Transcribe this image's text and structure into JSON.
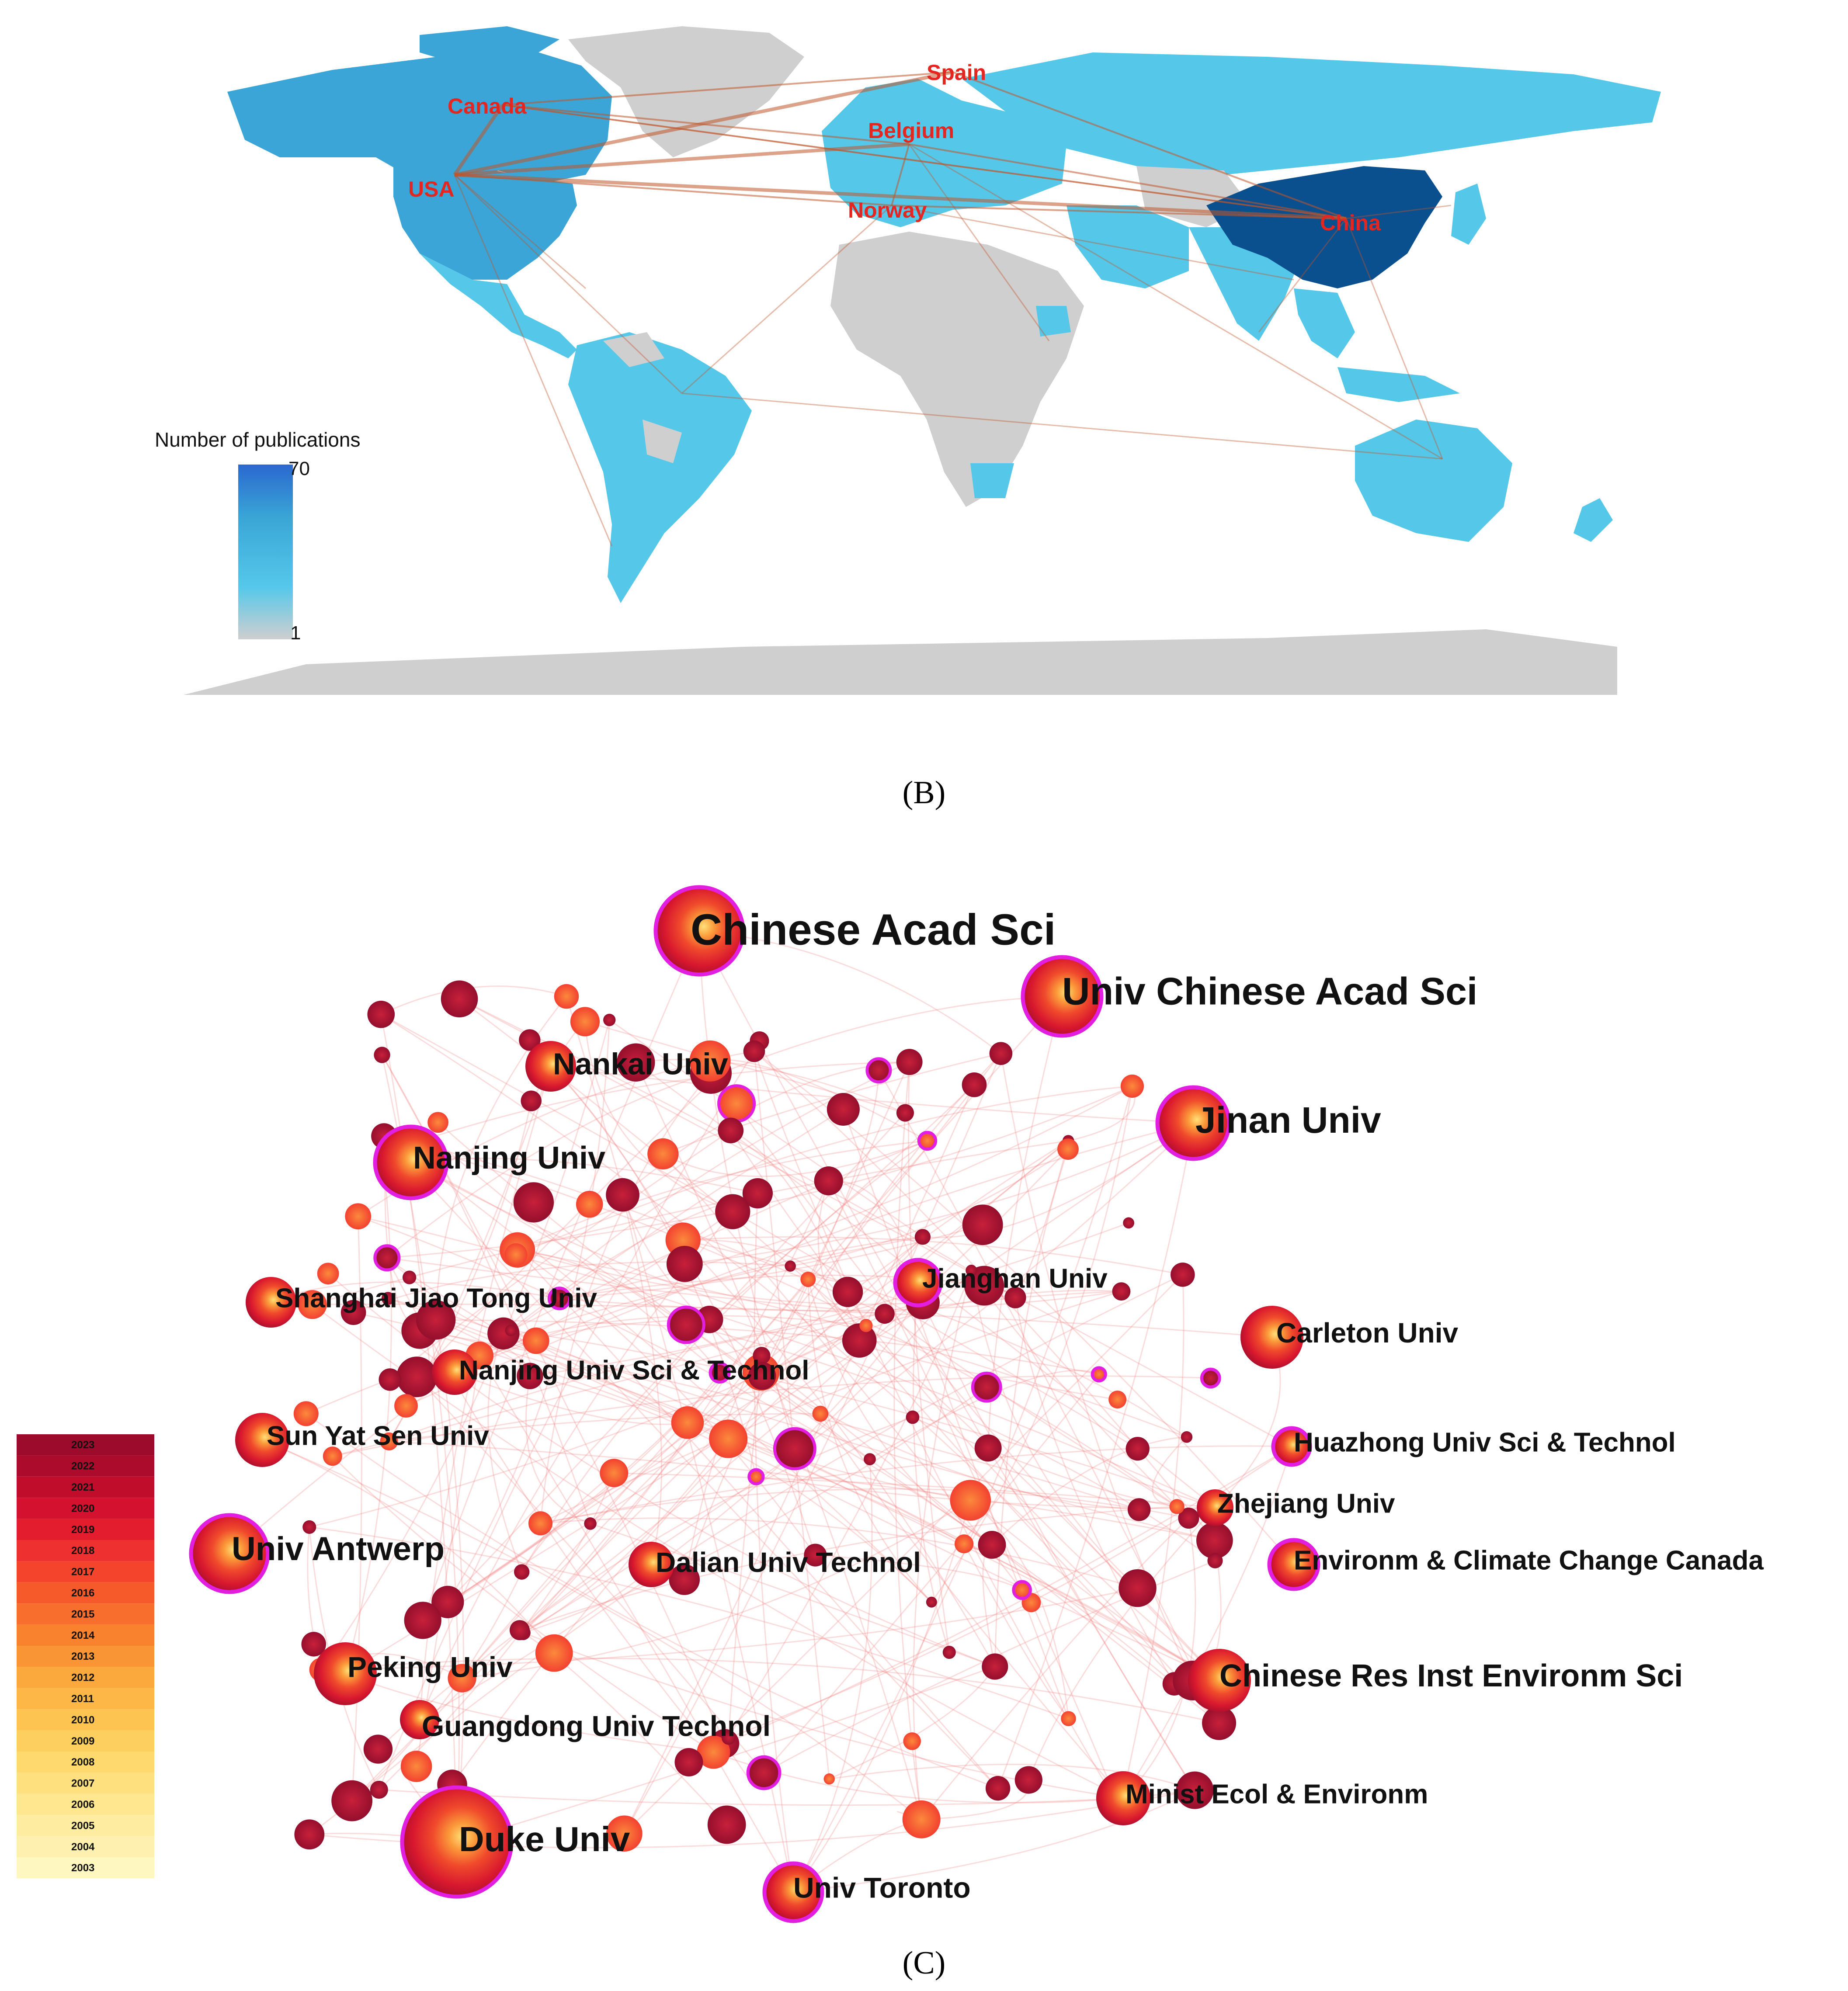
{
  "figure": {
    "panel_b_label": "(B)",
    "panel_c_label": "(C)"
  },
  "chart_data": [
    {
      "type": "map",
      "panel": "(B)",
      "legend": {
        "title": "Number of publications",
        "max_label": "70",
        "min_label": "1"
      },
      "color_scale": [
        "#cfcfcf",
        "#55c8ea",
        "#3aa5d6",
        "#2a68cf"
      ],
      "country_labels": [
        "Spain",
        "Canada",
        "Belgium",
        "USA",
        "Norway",
        "China"
      ],
      "collaboration_links": [
        [
          "USA",
          "China"
        ],
        [
          "USA",
          "Canada"
        ],
        [
          "USA",
          "Belgium"
        ],
        [
          "USA",
          "Spain"
        ],
        [
          "USA",
          "Norway"
        ],
        [
          "Canada",
          "China"
        ],
        [
          "Canada",
          "Spain"
        ],
        [
          "Canada",
          "Belgium"
        ],
        [
          "Belgium",
          "China"
        ],
        [
          "Norway",
          "China"
        ],
        [
          "Spain",
          "China"
        ],
        [
          "Norway",
          "Belgium"
        ]
      ]
    },
    {
      "type": "network",
      "panel": "(C)",
      "timeline_legend": [
        "2023",
        "2022",
        "2021",
        "2020",
        "2019",
        "2018",
        "2017",
        "2016",
        "2015",
        "2014",
        "2013",
        "2012",
        "2011",
        "2010",
        "2009",
        "2008",
        "2007",
        "2006",
        "2005",
        "2004",
        "2003"
      ],
      "year_colors": [
        "#9c0b2b",
        "#ad0b2c",
        "#c00d2c",
        "#d4112e",
        "#e41d2e",
        "#ef3030",
        "#f4452c",
        "#f65a2b",
        "#f86e2c",
        "#f9822f",
        "#fa9535",
        "#fba83d",
        "#fcb746",
        "#fdc451",
        "#fdcf5e",
        "#fed96d",
        "#fee07e",
        "#fee78f",
        "#feeda0",
        "#fef1b0",
        "#fff6c0"
      ],
      "institutions": [
        "Chinese Acad Sci",
        "Univ Chinese Acad Sci",
        "Nankai Univ",
        "Jinan Univ",
        "Nanjing Univ",
        "Jianghan Univ",
        "Shanghai Jiao Tong Univ",
        "Carleton Univ",
        "Nanjing Univ Sci & Technol",
        "Sun Yat Sen Univ",
        "Huazhong Univ Sci & Technol",
        "Zhejiang Univ",
        "Univ Antwerp",
        "Dalian Univ Technol",
        "Environm & Climate Change Canada",
        "Peking Univ",
        "Chinese Res Inst Environm Sci",
        "Guangdong Univ Technol",
        "Minist Ecol & Environm",
        "Duke Univ",
        "Univ Toronto"
      ]
    }
  ]
}
